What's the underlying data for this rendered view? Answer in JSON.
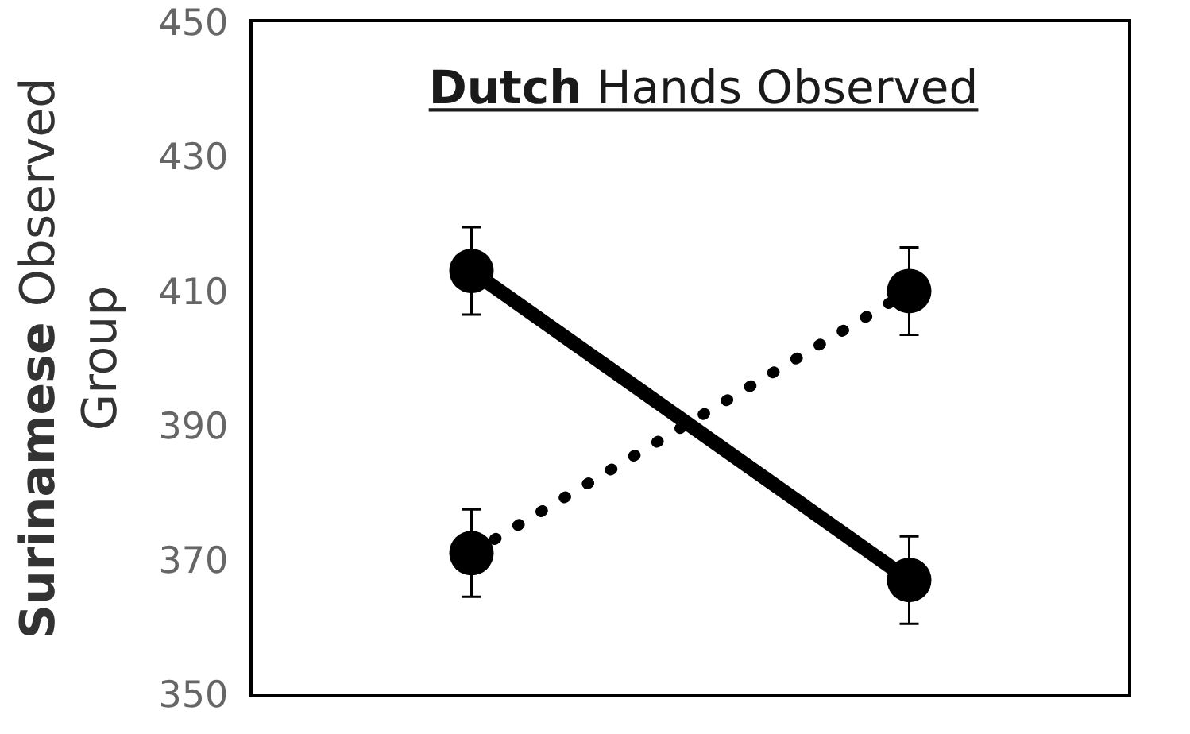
{
  "chart_data": {
    "type": "line",
    "title": "Dutch Hands Observed",
    "ylabel": "Surinamese Observed Group",
    "categories": [
      null,
      null
    ],
    "series": [
      {
        "color": "#000000",
        "values": [
          413,
          367
        ],
        "errors": [
          6.5,
          6.5
        ],
        "line_style": "solid"
      },
      {
        "color": "#000000",
        "values": [
          371,
          410
        ],
        "errors": [
          6.5,
          6.5
        ],
        "line_style": "dotted"
      }
    ],
    "ylim": [
      350,
      450
    ],
    "yticks": [
      350,
      370,
      390,
      410,
      430,
      450
    ],
    "marker": "circle"
  }
}
